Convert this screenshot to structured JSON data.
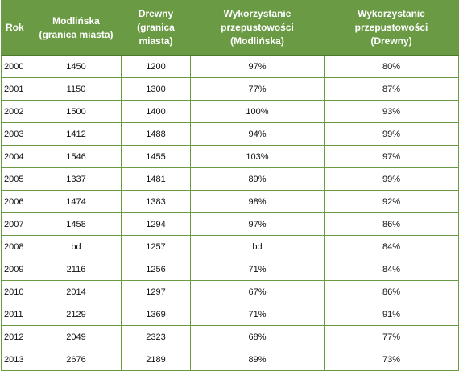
{
  "table": {
    "headers": [
      [
        "Rok"
      ],
      [
        "Modlińska",
        "(granica miasta)"
      ],
      [
        "Drewny",
        "(granica",
        "miasta)"
      ],
      [
        "Wykorzystanie",
        "przepustowości",
        "(Modlińska)"
      ],
      [
        "Wykorzystanie",
        "przepustowości",
        "(Drewny)"
      ]
    ],
    "rows": [
      [
        "2000",
        "1450",
        "1200",
        "97%",
        "80%"
      ],
      [
        "2001",
        "1150",
        "1300",
        "77%",
        "87%"
      ],
      [
        "2002",
        "1500",
        "1400",
        "100%",
        "93%"
      ],
      [
        "2003",
        "1412",
        "1488",
        "94%",
        "99%"
      ],
      [
        "2004",
        "1546",
        "1455",
        "103%",
        "97%"
      ],
      [
        "2005",
        "1337",
        "1481",
        "89%",
        "99%"
      ],
      [
        "2006",
        "1474",
        "1383",
        "98%",
        "92%"
      ],
      [
        "2007",
        "1458",
        "1294",
        "97%",
        "86%"
      ],
      [
        "2008",
        "bd",
        "1257",
        "bd",
        "84%"
      ],
      [
        "2009",
        "2116",
        "1256",
        "71%",
        "84%"
      ],
      [
        "2010",
        "2014",
        "1297",
        "67%",
        "86%"
      ],
      [
        "2011",
        "2129",
        "1369",
        "71%",
        "91%"
      ],
      [
        "2012",
        "2049",
        "2323",
        "68%",
        "77%"
      ],
      [
        "2013",
        "2676",
        "2189",
        "89%",
        "73%"
      ]
    ]
  },
  "colors": {
    "header_bg": "#6a9a43",
    "border": "#6a9a43",
    "header_text": "#ffffff"
  }
}
